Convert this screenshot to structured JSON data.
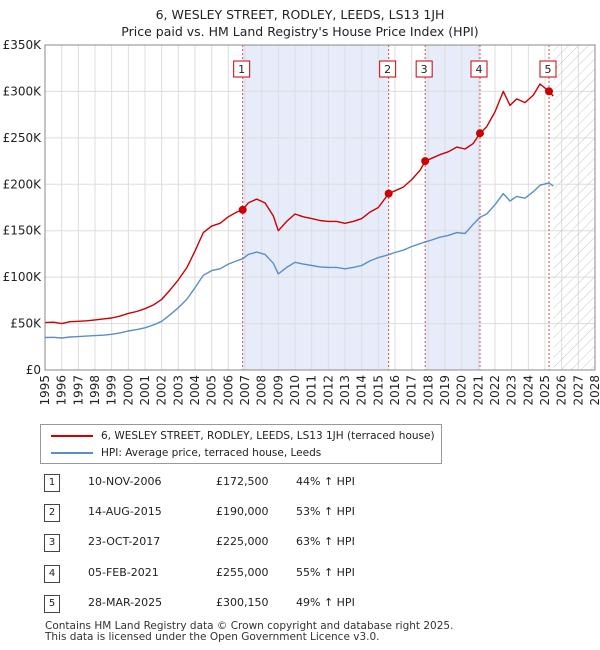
{
  "chart_data": {
    "type": "line",
    "title": "6, WESLEY STREET, RODLEY, LEEDS, LS13 1JH",
    "subtitle": "Price paid vs. HM Land Registry's House Price Index (HPI)",
    "xlabel": "",
    "ylabel": "",
    "xlim": [
      1995,
      2028
    ],
    "ylim": [
      0,
      350000
    ],
    "x_ticks": [
      "1995",
      "1996",
      "1997",
      "1998",
      "1999",
      "2000",
      "2001",
      "2002",
      "2003",
      "2004",
      "2005",
      "2006",
      "2007",
      "2008",
      "2009",
      "2010",
      "2011",
      "2012",
      "2013",
      "2014",
      "2015",
      "2016",
      "2017",
      "2018",
      "2019",
      "2020",
      "2021",
      "2022",
      "2023",
      "2024",
      "2025",
      "2026",
      "2027",
      "2028"
    ],
    "y_ticks": [
      {
        "value": 0,
        "label": "£0"
      },
      {
        "value": 50000,
        "label": "£50K"
      },
      {
        "value": 100000,
        "label": "£100K"
      },
      {
        "value": 150000,
        "label": "£150K"
      },
      {
        "value": 200000,
        "label": "£200K"
      },
      {
        "value": 250000,
        "label": "£250K"
      },
      {
        "value": 300000,
        "label": "£300K"
      },
      {
        "value": 350000,
        "label": "£350K"
      }
    ],
    "grid": true,
    "series": [
      {
        "name": "6, WESLEY STREET, RODLEY, LEEDS, LS13 1JH (terraced house)",
        "color": "#cc0000",
        "points": [
          [
            1995.0,
            51000
          ],
          [
            1995.5,
            51500
          ],
          [
            1996.0,
            50000
          ],
          [
            1996.5,
            52000
          ],
          [
            1997.0,
            52500
          ],
          [
            1997.5,
            53000
          ],
          [
            1998.0,
            54000
          ],
          [
            1998.5,
            55000
          ],
          [
            1999.0,
            56000
          ],
          [
            1999.5,
            58000
          ],
          [
            2000.0,
            61000
          ],
          [
            2000.5,
            63000
          ],
          [
            2001.0,
            66000
          ],
          [
            2001.5,
            70000
          ],
          [
            2002.0,
            76000
          ],
          [
            2002.5,
            86000
          ],
          [
            2003.0,
            97000
          ],
          [
            2003.5,
            110000
          ],
          [
            2004.0,
            128000
          ],
          [
            2004.5,
            148000
          ],
          [
            2005.0,
            155000
          ],
          [
            2005.5,
            158000
          ],
          [
            2006.0,
            165000
          ],
          [
            2006.5,
            170000
          ],
          [
            2006.86,
            172500
          ],
          [
            2007.2,
            180000
          ],
          [
            2007.7,
            184000
          ],
          [
            2008.2,
            180000
          ],
          [
            2008.7,
            166000
          ],
          [
            2009.0,
            150000
          ],
          [
            2009.5,
            160000
          ],
          [
            2010.0,
            168000
          ],
          [
            2010.5,
            165000
          ],
          [
            2011.0,
            163000
          ],
          [
            2011.5,
            161000
          ],
          [
            2012.0,
            160000
          ],
          [
            2012.5,
            160000
          ],
          [
            2013.0,
            158000
          ],
          [
            2013.5,
            160000
          ],
          [
            2014.0,
            163000
          ],
          [
            2014.5,
            170000
          ],
          [
            2015.0,
            175000
          ],
          [
            2015.62,
            190000
          ],
          [
            2016.0,
            193000
          ],
          [
            2016.5,
            197000
          ],
          [
            2017.0,
            205000
          ],
          [
            2017.5,
            215000
          ],
          [
            2017.81,
            225000
          ],
          [
            2018.2,
            228000
          ],
          [
            2018.7,
            232000
          ],
          [
            2019.2,
            235000
          ],
          [
            2019.7,
            240000
          ],
          [
            2020.2,
            238000
          ],
          [
            2020.7,
            244000
          ],
          [
            2021.1,
            255000
          ],
          [
            2021.5,
            262000
          ],
          [
            2022.0,
            278000
          ],
          [
            2022.5,
            300000
          ],
          [
            2022.9,
            285000
          ],
          [
            2023.3,
            292000
          ],
          [
            2023.8,
            288000
          ],
          [
            2024.3,
            296000
          ],
          [
            2024.7,
            308000
          ],
          [
            2025.24,
            300150
          ],
          [
            2025.5,
            295000
          ]
        ]
      },
      {
        "name": "HPI: Average price, terraced house, Leeds",
        "color": "#5b8ec9",
        "points": [
          [
            1995.0,
            35000
          ],
          [
            1995.5,
            35200
          ],
          [
            1996.0,
            34500
          ],
          [
            1996.5,
            35500
          ],
          [
            1997.0,
            36000
          ],
          [
            1997.5,
            36500
          ],
          [
            1998.0,
            37000
          ],
          [
            1998.5,
            37500
          ],
          [
            1999.0,
            38500
          ],
          [
            1999.5,
            40000
          ],
          [
            2000.0,
            42000
          ],
          [
            2000.5,
            43500
          ],
          [
            2001.0,
            45500
          ],
          [
            2001.5,
            48500
          ],
          [
            2002.0,
            52500
          ],
          [
            2002.5,
            59500
          ],
          [
            2003.0,
            67000
          ],
          [
            2003.5,
            76000
          ],
          [
            2004.0,
            88500
          ],
          [
            2004.5,
            102000
          ],
          [
            2005.0,
            107000
          ],
          [
            2005.5,
            109000
          ],
          [
            2006.0,
            114000
          ],
          [
            2006.5,
            117500
          ],
          [
            2006.86,
            119800
          ],
          [
            2007.2,
            124500
          ],
          [
            2007.7,
            127000
          ],
          [
            2008.2,
            124500
          ],
          [
            2008.7,
            115000
          ],
          [
            2009.0,
            103500
          ],
          [
            2009.5,
            110500
          ],
          [
            2010.0,
            116000
          ],
          [
            2010.5,
            114000
          ],
          [
            2011.0,
            112500
          ],
          [
            2011.5,
            111000
          ],
          [
            2012.0,
            110500
          ],
          [
            2012.5,
            110500
          ],
          [
            2013.0,
            109000
          ],
          [
            2013.5,
            110500
          ],
          [
            2014.0,
            112500
          ],
          [
            2014.5,
            117500
          ],
          [
            2015.0,
            121000
          ],
          [
            2015.62,
            124200
          ],
          [
            2016.0,
            126500
          ],
          [
            2016.5,
            129000
          ],
          [
            2017.0,
            133000
          ],
          [
            2017.5,
            136000
          ],
          [
            2017.81,
            138000
          ],
          [
            2018.2,
            140000
          ],
          [
            2018.7,
            143000
          ],
          [
            2019.2,
            145000
          ],
          [
            2019.7,
            148000
          ],
          [
            2020.2,
            147000
          ],
          [
            2020.7,
            157000
          ],
          [
            2021.1,
            164500
          ],
          [
            2021.5,
            168000
          ],
          [
            2022.0,
            178000
          ],
          [
            2022.5,
            190000
          ],
          [
            2022.9,
            182000
          ],
          [
            2023.3,
            187000
          ],
          [
            2023.8,
            185000
          ],
          [
            2024.3,
            192000
          ],
          [
            2024.7,
            199000
          ],
          [
            2025.24,
            201500
          ],
          [
            2025.5,
            198000
          ]
        ]
      }
    ],
    "sales": [
      {
        "num": "1",
        "x": 2006.86,
        "price": 172500,
        "date": "10-NOV-2006",
        "price_label": "£172,500",
        "hpi": "44% ↑ HPI"
      },
      {
        "num": "2",
        "x": 2015.62,
        "price": 190000,
        "date": "14-AUG-2015",
        "price_label": "£190,000",
        "hpi": "53% ↑ HPI"
      },
      {
        "num": "3",
        "x": 2017.81,
        "price": 225000,
        "date": "23-OCT-2017",
        "price_label": "£225,000",
        "hpi": "63% ↑ HPI"
      },
      {
        "num": "4",
        "x": 2021.1,
        "price": 255000,
        "date": "05-FEB-2021",
        "price_label": "£255,000",
        "hpi": "55% ↑ HPI"
      },
      {
        "num": "5",
        "x": 2025.24,
        "price": 300150,
        "date": "28-MAR-2025",
        "price_label": "£300,150",
        "hpi": "49% ↑ HPI"
      }
    ],
    "shaded_regions": [
      [
        2006.86,
        2015.62
      ],
      [
        2017.81,
        2021.1
      ]
    ],
    "future_hatch_start": 2025.5,
    "colors": {
      "shade": "#e6ecfa",
      "grid": "#dddddd",
      "marker_line": "#cc0000"
    }
  },
  "legend": {
    "items": [
      {
        "label": "6, WESLEY STREET, RODLEY, LEEDS, LS13 1JH (terraced house)",
        "color": "#cc0000"
      },
      {
        "label": "HPI: Average price, terraced house, Leeds",
        "color": "#5b8ec9"
      }
    ]
  },
  "footer": {
    "line1": "Contains HM Land Registry data © Crown copyright and database right 2025.",
    "line2": "This data is licensed under the Open Government Licence v3.0."
  }
}
